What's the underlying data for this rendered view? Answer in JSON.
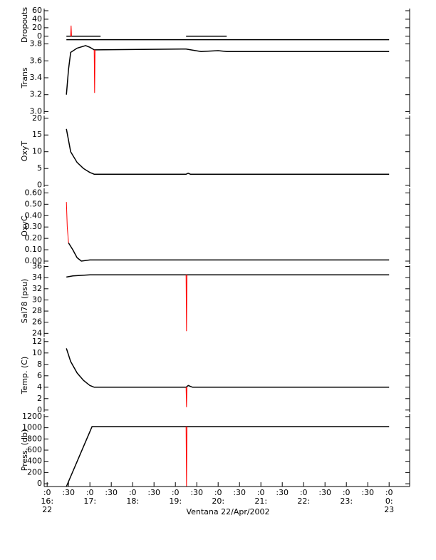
{
  "x_axis": {
    "label": "Ventana 22/Apr/2002",
    "xlim": [
      15.93,
      24.48
    ],
    "xticks": [
      {
        "value": 16,
        "label": ":0\n16:\n22"
      },
      {
        "value": 16.5,
        "label": ":30"
      },
      {
        "value": 17,
        "label": ":0\n17:"
      },
      {
        "value": 17.5,
        "label": ":30"
      },
      {
        "value": 18,
        "label": ":0\n18:"
      },
      {
        "value": 18.5,
        "label": ":30"
      },
      {
        "value": 19,
        "label": ":0\n19:"
      },
      {
        "value": 19.5,
        "label": ":30"
      },
      {
        "value": 20,
        "label": ":0\n20:"
      },
      {
        "value": 20.5,
        "label": ":30"
      },
      {
        "value": 21,
        "label": ":0\n21:"
      },
      {
        "value": 21.5,
        "label": ":30"
      },
      {
        "value": 22,
        "label": ":0\n22:"
      },
      {
        "value": 22.5,
        "label": ":30"
      },
      {
        "value": 23,
        "label": ":0\n23:"
      },
      {
        "value": 23.5,
        "label": ":30"
      },
      {
        "value": 24,
        "label": ":0\n0:\n23"
      }
    ]
  },
  "chart_data": [
    {
      "type": "line",
      "ylabel": "Dropouts",
      "ylim": [
        -12,
        65
      ],
      "yticks": [
        60,
        40,
        20,
        0
      ],
      "series": [
        {
          "color": "#000000",
          "x": [
            16.45,
            17.25,
            17.3,
            19.25,
            20.2
          ],
          "values": [
            0,
            0,
            null,
            0,
            0
          ]
        },
        {
          "color": "#000000",
          "x": [
            16.45,
            24.0
          ],
          "values": [
            -8,
            -8
          ]
        },
        {
          "color": "#ff0000",
          "x": [
            16.55,
            16.56,
            16.57
          ],
          "values": [
            0,
            25,
            0
          ]
        }
      ]
    },
    {
      "type": "line",
      "ylabel": "Trans",
      "ylim": [
        2.97,
        3.83
      ],
      "yticks": [
        {
          "value": 3.0,
          "label": "3.0"
        },
        3.2,
        3.4,
        3.6,
        3.8
      ],
      "series": [
        {
          "color": "#000000",
          "x": [
            16.45,
            16.5,
            16.55,
            16.7,
            16.9,
            17.0,
            17.1,
            19.25,
            19.6,
            20.0,
            20.2,
            20.25,
            24.0
          ],
          "values": [
            3.2,
            3.5,
            3.7,
            3.75,
            3.78,
            3.76,
            3.73,
            3.74,
            3.71,
            3.72,
            3.71,
            3.71,
            3.71
          ]
        },
        {
          "color": "#ff0000",
          "x": [
            17.1,
            17.11,
            17.12
          ],
          "values": [
            3.73,
            3.22,
            3.73
          ]
        }
      ]
    },
    {
      "type": "line",
      "ylabel": "OxyT",
      "ylim": [
        -0.5,
        20.8
      ],
      "yticks": [
        0,
        5,
        10,
        15,
        20
      ],
      "series": [
        {
          "color": "#000000",
          "x": [
            16.45,
            16.55,
            16.7,
            16.85,
            17.0,
            17.1,
            19.25,
            19.3,
            19.35,
            24.0
          ],
          "values": [
            16.8,
            10,
            6.8,
            5,
            3.8,
            3.3,
            3.3,
            3.6,
            3.3,
            3.3
          ]
        }
      ]
    },
    {
      "type": "line",
      "ylabel": "OxyC",
      "ylim": [
        -0.025,
        0.64
      ],
      "yticks": [
        {
          "value": 0,
          "label": "0.00"
        },
        {
          "value": 0.1,
          "label": "0.10"
        },
        {
          "value": 0.2,
          "label": "0.20"
        },
        {
          "value": 0.3,
          "label": "0.30"
        },
        {
          "value": 0.4,
          "label": "0.40"
        },
        {
          "value": 0.5,
          "label": "0.50"
        },
        {
          "value": 0.6,
          "label": "0.60"
        }
      ],
      "series": [
        {
          "color": "#000000",
          "x": [
            16.5,
            16.6,
            16.7,
            16.8,
            17.0,
            24.0
          ],
          "values": [
            0.16,
            0.1,
            0.03,
            0.0,
            0.01,
            0.01
          ]
        },
        {
          "color": "#ff0000",
          "x": [
            16.45,
            16.47,
            16.5
          ],
          "values": [
            0.52,
            0.3,
            0.16
          ]
        }
      ]
    },
    {
      "type": "line",
      "ylabel": "Sal78 (psu)",
      "ylim": [
        23.4,
        36.2
      ],
      "yticks": [
        24,
        26,
        28,
        30,
        32,
        34,
        36
      ],
      "series": [
        {
          "color": "#000000",
          "x": [
            16.45,
            16.6,
            17.0,
            24.0
          ],
          "values": [
            34.1,
            34.3,
            34.5,
            34.5
          ]
        },
        {
          "color": "#ff0000",
          "x": [
            19.25,
            19.26,
            19.27
          ],
          "values": [
            34.5,
            24.4,
            34.5
          ]
        }
      ]
    },
    {
      "type": "line",
      "ylabel": "Temp. (C)",
      "ylim": [
        -0.4,
        12.6
      ],
      "yticks": [
        0,
        2,
        4,
        6,
        8,
        10,
        12
      ],
      "series": [
        {
          "color": "#000000",
          "x": [
            16.45,
            16.55,
            16.7,
            16.85,
            17.0,
            17.1,
            19.25,
            19.3,
            19.4,
            24.0
          ],
          "values": [
            10.8,
            8.5,
            6.5,
            5.2,
            4.3,
            4.0,
            4.0,
            4.3,
            4.0,
            4.0
          ]
        },
        {
          "color": "#ff0000",
          "x": [
            19.25,
            19.26,
            19.27
          ],
          "values": [
            4.0,
            0.5,
            4.0
          ]
        }
      ]
    },
    {
      "type": "line",
      "ylabel": "Press. (db)",
      "ylim": [
        -50,
        1250
      ],
      "yticks": [
        0,
        200,
        400,
        600,
        800,
        1000,
        1200
      ],
      "series": [
        {
          "color": "#000000",
          "x": [
            16.45,
            17.05,
            24.0
          ],
          "values": [
            -50,
            1020,
            1020
          ]
        },
        {
          "color": "#ff0000",
          "x": [
            19.25,
            19.26,
            19.27
          ],
          "values": [
            1020,
            -50,
            1020
          ]
        }
      ]
    }
  ]
}
